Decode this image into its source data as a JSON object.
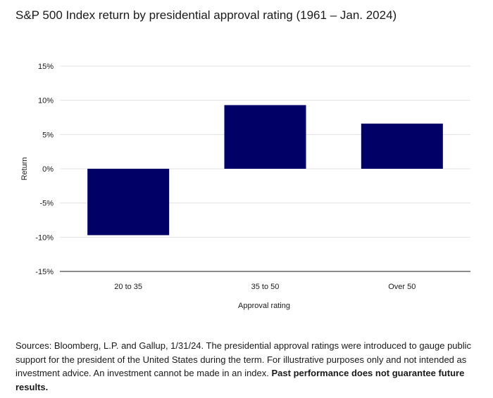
{
  "chart_data": {
    "type": "bar",
    "title": "S&P 500 Index return by presidential approval rating (1961 – Jan. 2024)",
    "xlabel": "Approval rating",
    "ylabel": "Return",
    "categories": [
      "20 to 35",
      "35 to 50",
      "Over 50"
    ],
    "values": [
      -9.7,
      9.3,
      6.6
    ],
    "ylim": [
      -15,
      15
    ],
    "yticks": [
      15,
      10,
      5,
      0,
      -5,
      -10,
      -15
    ],
    "ytick_labels": [
      "15%",
      "10%",
      "5%",
      "0%",
      "-5%",
      "-10%",
      "-15%"
    ],
    "bar_color": "#000066",
    "grid_color": "#e3e3e3",
    "grid": true,
    "legend": "none"
  },
  "footnote": {
    "text": "Sources: Bloomberg, L.P. and Gallup, 1/31/24. The presidential approval ratings were introduced to gauge public support for the president of the United States during the term. For illustrative purposes only and not intended as investment advice. An investment cannot be made in an index.",
    "bold": "Past performance does not guarantee future results."
  }
}
